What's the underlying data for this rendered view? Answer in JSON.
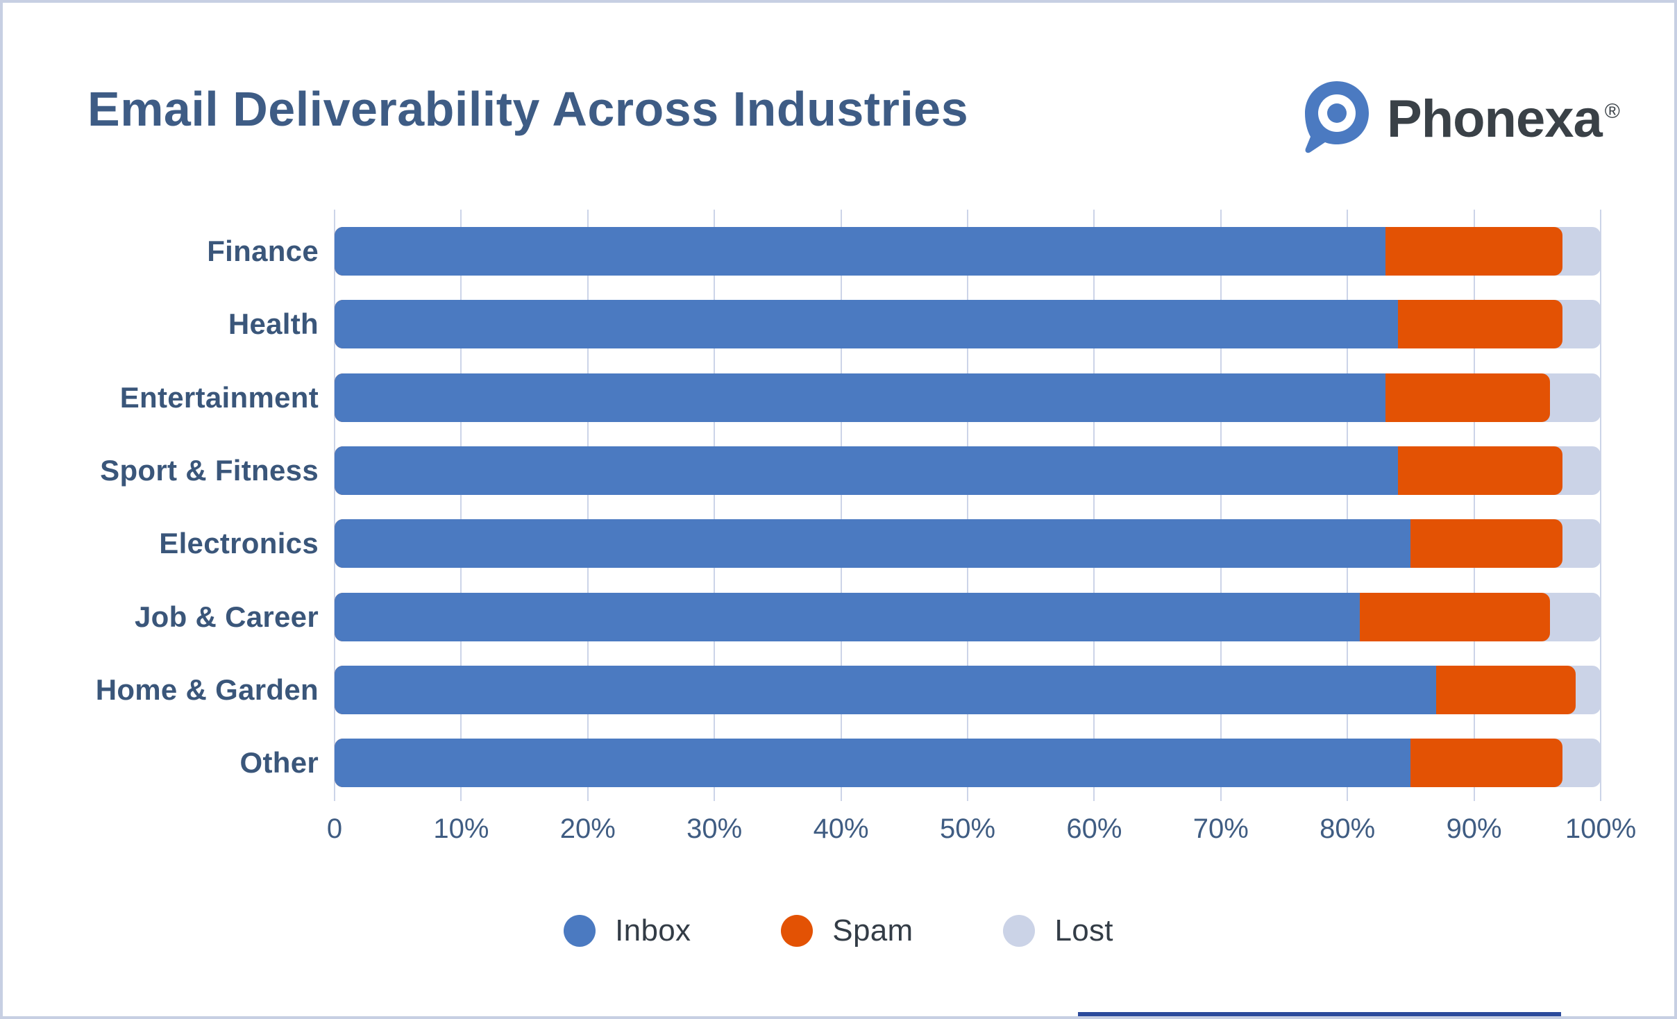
{
  "header": {
    "title": "Email Deliverability Across Industries",
    "brand": {
      "name": "Phonexa",
      "registered_mark": "®"
    }
  },
  "chart_data": {
    "type": "bar",
    "variant": "horizontal-stacked",
    "title": "Email Deliverability Across Industries",
    "categories": [
      "Finance",
      "Health",
      "Entertainment",
      "Sport & Fitness",
      "Electronics",
      "Job & Career",
      "Home & Garden",
      "Other"
    ],
    "series": [
      {
        "name": "Inbox",
        "color": "#4b7ac1",
        "values": [
          83,
          84,
          83,
          84,
          85,
          81,
          87,
          85
        ]
      },
      {
        "name": "Spam",
        "color": "#e35204",
        "values": [
          14,
          13,
          13,
          13,
          12,
          15,
          11,
          12
        ]
      },
      {
        "name": "Lost",
        "color": "#cbd3e7",
        "values": [
          3,
          3,
          4,
          3,
          3,
          4,
          2,
          3
        ]
      }
    ],
    "xlabel": "",
    "ylabel": "",
    "xlim": [
      0,
      100
    ],
    "x_ticks": [
      "0",
      "10%",
      "20%",
      "30%",
      "40%",
      "50%",
      "60%",
      "70%",
      "80%",
      "90%",
      "100%"
    ],
    "grid": "vertical-on",
    "legend_position": "bottom"
  },
  "colors": {
    "inbox": "#4b7ac1",
    "spam": "#e35204",
    "lost": "#cbd3e7",
    "gridline": "#ccd4e8",
    "card_border": "#c7cfe3",
    "title_text": "#3e5c85",
    "label_text": "#3a567a",
    "tick_text": "#3f5c82",
    "legend_text": "#333c46",
    "brand_text": "#3a4147",
    "brand_icon_blue": "#4b7ac1",
    "bottom_strip": "#2b4a9b",
    "background": "#ffffff"
  }
}
